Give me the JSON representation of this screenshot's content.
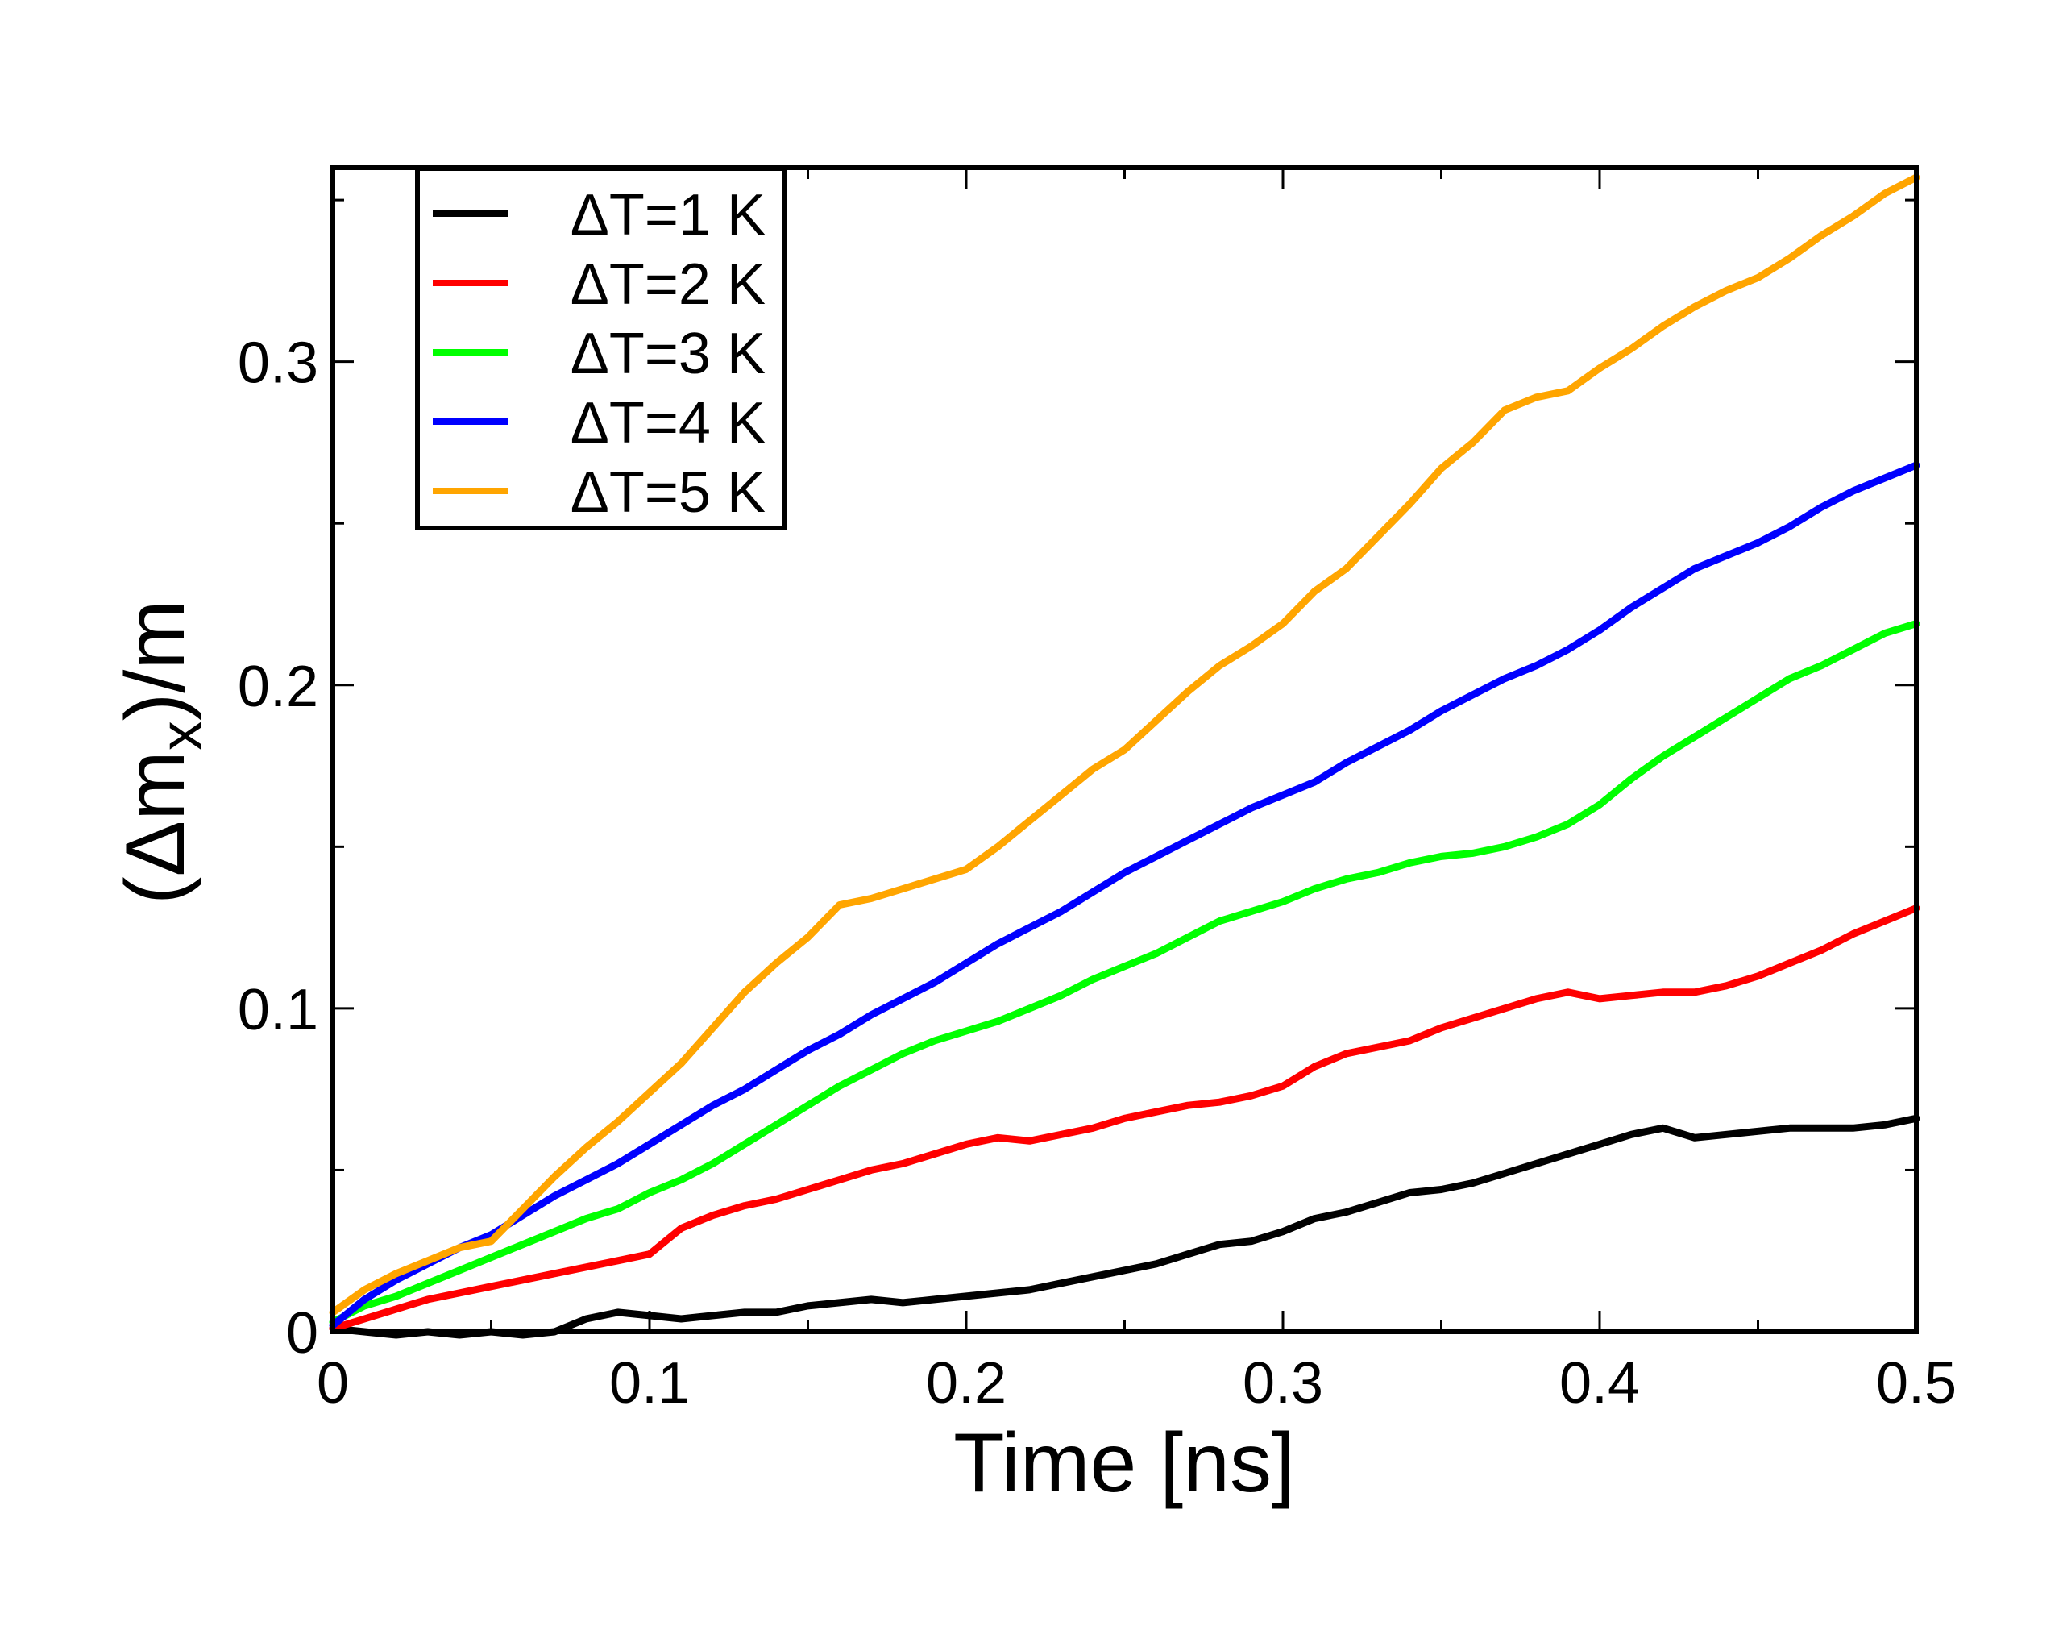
{
  "chart_data": {
    "type": "line",
    "xlabel": "Time [ns]",
    "ylabel_parts": {
      "open": "(",
      "delta": "Δm",
      "sub": "x",
      "close": ")/m"
    },
    "xlim": [
      0,
      0.5
    ],
    "ylim": [
      0,
      0.36
    ],
    "x_ticks": [
      "0",
      "0.1",
      "0.2",
      "0.3",
      "0.4",
      "0.5"
    ],
    "x_tick_values": [
      0,
      0.1,
      0.2,
      0.3,
      0.4,
      0.5
    ],
    "y_ticks": [
      "0",
      "0.1",
      "0.2",
      "0.3"
    ],
    "y_tick_values": [
      0,
      0.1,
      0.2,
      0.3
    ],
    "x_minor_ticks": [
      0.05,
      0.15,
      0.25,
      0.35,
      0.45
    ],
    "y_minor_ticks": [
      0.05,
      0.15,
      0.25,
      0.35
    ],
    "grid": false,
    "legend_position": "top-left",
    "series": [
      {
        "name": "ΔT=1 K",
        "color": "#000000",
        "x": [
          0,
          0.01,
          0.02,
          0.03,
          0.04,
          0.05,
          0.06,
          0.07,
          0.08,
          0.09,
          0.1,
          0.11,
          0.12,
          0.13,
          0.14,
          0.15,
          0.16,
          0.17,
          0.18,
          0.19,
          0.2,
          0.21,
          0.22,
          0.23,
          0.24,
          0.25,
          0.26,
          0.27,
          0.28,
          0.29,
          0.3,
          0.31,
          0.32,
          0.33,
          0.34,
          0.35,
          0.36,
          0.37,
          0.38,
          0.39,
          0.4,
          0.41,
          0.42,
          0.43,
          0.44,
          0.45,
          0.46,
          0.47,
          0.48,
          0.49,
          0.5
        ],
        "y": [
          0.001,
          0.0,
          -0.001,
          0.0,
          -0.001,
          0.0,
          -0.001,
          0.0,
          0.004,
          0.006,
          0.005,
          0.004,
          0.005,
          0.006,
          0.006,
          0.008,
          0.009,
          0.01,
          0.009,
          0.01,
          0.011,
          0.012,
          0.013,
          0.015,
          0.017,
          0.019,
          0.021,
          0.024,
          0.027,
          0.028,
          0.031,
          0.035,
          0.037,
          0.04,
          0.043,
          0.044,
          0.046,
          0.049,
          0.052,
          0.055,
          0.058,
          0.061,
          0.063,
          0.06,
          0.061,
          0.062,
          0.063,
          0.063,
          0.063,
          0.064,
          0.066
        ]
      },
      {
        "name": "ΔT=2 K",
        "color": "#ff0000",
        "x": [
          0,
          0.01,
          0.02,
          0.03,
          0.04,
          0.05,
          0.06,
          0.07,
          0.08,
          0.09,
          0.1,
          0.11,
          0.12,
          0.13,
          0.14,
          0.15,
          0.16,
          0.17,
          0.18,
          0.19,
          0.2,
          0.21,
          0.22,
          0.23,
          0.24,
          0.25,
          0.26,
          0.27,
          0.28,
          0.29,
          0.3,
          0.31,
          0.32,
          0.33,
          0.34,
          0.35,
          0.36,
          0.37,
          0.38,
          0.39,
          0.4,
          0.41,
          0.42,
          0.43,
          0.44,
          0.45,
          0.46,
          0.47,
          0.48,
          0.49,
          0.5
        ],
        "y": [
          0.001,
          0.004,
          0.007,
          0.01,
          0.012,
          0.014,
          0.016,
          0.018,
          0.02,
          0.022,
          0.024,
          0.032,
          0.036,
          0.039,
          0.041,
          0.044,
          0.047,
          0.05,
          0.052,
          0.055,
          0.058,
          0.06,
          0.059,
          0.061,
          0.063,
          0.066,
          0.068,
          0.07,
          0.071,
          0.073,
          0.076,
          0.082,
          0.086,
          0.088,
          0.09,
          0.094,
          0.097,
          0.1,
          0.103,
          0.105,
          0.103,
          0.104,
          0.105,
          0.105,
          0.107,
          0.11,
          0.114,
          0.118,
          0.123,
          0.127,
          0.131
        ]
      },
      {
        "name": "ΔT=3 K",
        "color": "#00ff00",
        "x": [
          0,
          0.01,
          0.02,
          0.03,
          0.04,
          0.05,
          0.06,
          0.07,
          0.08,
          0.09,
          0.1,
          0.11,
          0.12,
          0.13,
          0.14,
          0.15,
          0.16,
          0.17,
          0.18,
          0.19,
          0.2,
          0.21,
          0.22,
          0.23,
          0.24,
          0.25,
          0.26,
          0.27,
          0.28,
          0.29,
          0.3,
          0.31,
          0.32,
          0.33,
          0.34,
          0.35,
          0.36,
          0.37,
          0.38,
          0.39,
          0.4,
          0.41,
          0.42,
          0.43,
          0.44,
          0.45,
          0.46,
          0.47,
          0.48,
          0.49,
          0.5
        ],
        "y": [
          0.003,
          0.008,
          0.011,
          0.015,
          0.019,
          0.023,
          0.027,
          0.031,
          0.035,
          0.038,
          0.043,
          0.047,
          0.052,
          0.058,
          0.064,
          0.07,
          0.076,
          0.081,
          0.086,
          0.09,
          0.093,
          0.096,
          0.1,
          0.104,
          0.109,
          0.113,
          0.117,
          0.122,
          0.127,
          0.13,
          0.133,
          0.137,
          0.14,
          0.142,
          0.145,
          0.147,
          0.148,
          0.15,
          0.153,
          0.157,
          0.163,
          0.171,
          0.178,
          0.184,
          0.19,
          0.196,
          0.202,
          0.206,
          0.211,
          0.216,
          0.219
        ]
      },
      {
        "name": "ΔT=4 K",
        "color": "#0000ff",
        "x": [
          0,
          0.01,
          0.02,
          0.03,
          0.04,
          0.05,
          0.06,
          0.07,
          0.08,
          0.09,
          0.1,
          0.11,
          0.12,
          0.13,
          0.14,
          0.15,
          0.16,
          0.17,
          0.18,
          0.19,
          0.2,
          0.21,
          0.22,
          0.23,
          0.24,
          0.25,
          0.26,
          0.27,
          0.28,
          0.29,
          0.3,
          0.31,
          0.32,
          0.33,
          0.34,
          0.35,
          0.36,
          0.37,
          0.38,
          0.39,
          0.4,
          0.41,
          0.42,
          0.43,
          0.44,
          0.45,
          0.46,
          0.47,
          0.48,
          0.49,
          0.5
        ],
        "y": [
          0.002,
          0.01,
          0.016,
          0.021,
          0.026,
          0.03,
          0.036,
          0.042,
          0.047,
          0.052,
          0.058,
          0.064,
          0.07,
          0.075,
          0.081,
          0.087,
          0.092,
          0.098,
          0.103,
          0.108,
          0.114,
          0.12,
          0.125,
          0.13,
          0.136,
          0.142,
          0.147,
          0.152,
          0.157,
          0.162,
          0.166,
          0.17,
          0.176,
          0.181,
          0.186,
          0.192,
          0.197,
          0.202,
          0.206,
          0.211,
          0.217,
          0.224,
          0.23,
          0.236,
          0.24,
          0.244,
          0.249,
          0.255,
          0.26,
          0.264,
          0.268
        ]
      },
      {
        "name": "ΔT=5 K",
        "color": "#ffa500",
        "x": [
          0,
          0.01,
          0.02,
          0.03,
          0.04,
          0.05,
          0.06,
          0.07,
          0.08,
          0.09,
          0.1,
          0.11,
          0.12,
          0.13,
          0.14,
          0.15,
          0.16,
          0.17,
          0.18,
          0.19,
          0.2,
          0.21,
          0.22,
          0.23,
          0.24,
          0.25,
          0.26,
          0.27,
          0.28,
          0.29,
          0.3,
          0.31,
          0.32,
          0.33,
          0.34,
          0.35,
          0.36,
          0.37,
          0.38,
          0.39,
          0.4,
          0.41,
          0.42,
          0.43,
          0.44,
          0.45,
          0.46,
          0.47,
          0.48,
          0.49,
          0.5
        ],
        "y": [
          0.006,
          0.013,
          0.018,
          0.022,
          0.026,
          0.028,
          0.038,
          0.048,
          0.057,
          0.065,
          0.074,
          0.083,
          0.094,
          0.105,
          0.114,
          0.122,
          0.132,
          0.134,
          0.137,
          0.14,
          0.143,
          0.15,
          0.158,
          0.166,
          0.174,
          0.18,
          0.189,
          0.198,
          0.206,
          0.212,
          0.219,
          0.229,
          0.236,
          0.246,
          0.256,
          0.267,
          0.275,
          0.285,
          0.289,
          0.291,
          0.298,
          0.304,
          0.311,
          0.317,
          0.322,
          0.326,
          0.332,
          0.339,
          0.345,
          0.352,
          0.357
        ]
      }
    ]
  }
}
